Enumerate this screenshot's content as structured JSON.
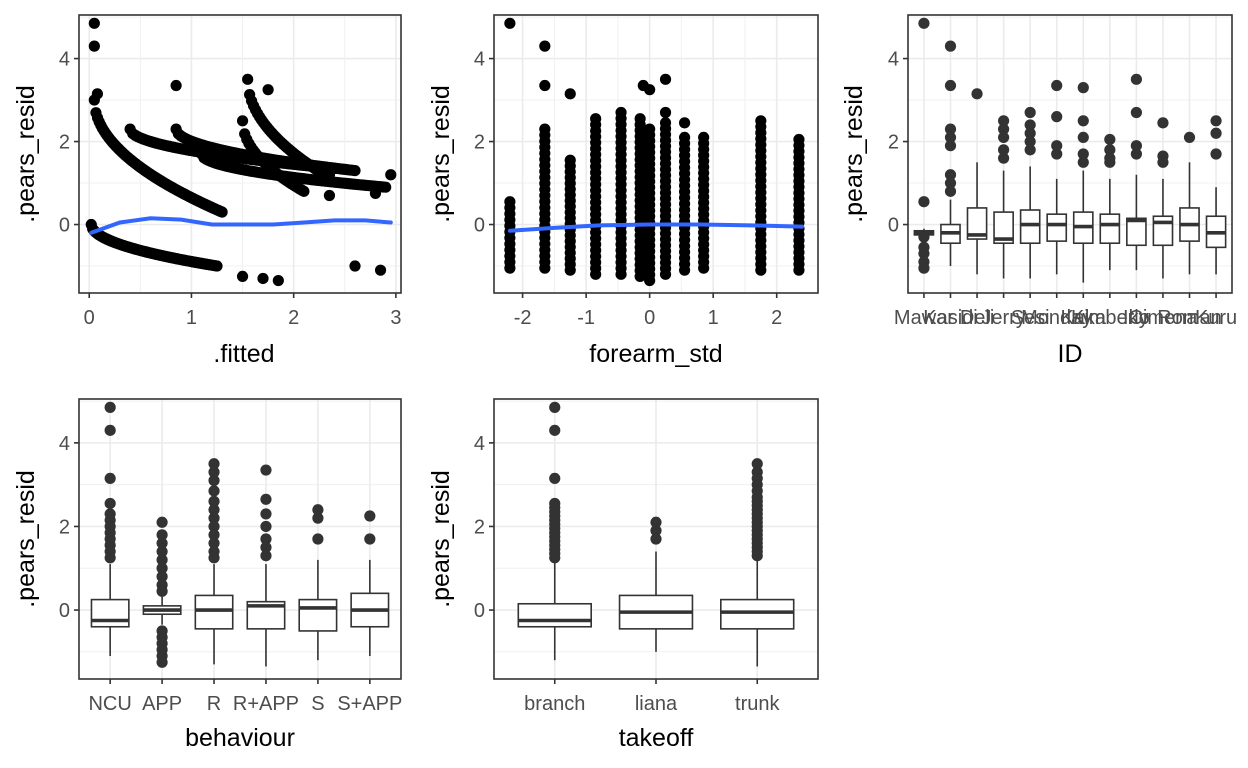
{
  "chart_data": [
    {
      "type": "scatter",
      "xlabel": ".fitted",
      "ylabel": ".pears_resid",
      "xlim": [
        -0.1,
        3.05
      ],
      "ylim": [
        -1.65,
        5.05
      ],
      "xticks": [
        "0",
        "1",
        "2",
        "3"
      ],
      "yticks": [
        "0",
        "2",
        "4"
      ],
      "grid": true,
      "smooth_color": "#3366FF",
      "smooth": [
        [
          0.02,
          -0.2
        ],
        [
          0.3,
          0.05
        ],
        [
          0.6,
          0.15
        ],
        [
          0.9,
          0.12
        ],
        [
          1.2,
          0.0
        ],
        [
          1.5,
          0.0
        ],
        [
          1.8,
          0.0
        ],
        [
          2.1,
          0.05
        ],
        [
          2.4,
          0.1
        ],
        [
          2.7,
          0.1
        ],
        [
          2.95,
          0.05
        ]
      ],
      "curves": [
        {
          "x_from": 0.02,
          "x_to": 1.25,
          "y_at_1": -1.0,
          "y_at_0": 0.0,
          "count": 90
        },
        {
          "x_from": 0.05,
          "x_to": 1.3,
          "y_at_1": 0.3,
          "y_at_0": 3.0,
          "count": 80
        },
        {
          "x_from": 0.4,
          "x_to": 2.4,
          "y_at_1": 1.35,
          "y_at_0": 2.3,
          "count": 80
        },
        {
          "x_from": 0.85,
          "x_to": 2.6,
          "y_at_1": 1.3,
          "y_at_0": 2.3,
          "count": 80
        },
        {
          "x_from": 1.1,
          "x_to": 2.9,
          "y_at_1": 0.9,
          "y_at_0": 1.7,
          "count": 80
        },
        {
          "x_from": 1.55,
          "x_to": 2.3,
          "y_at_1": 1.2,
          "y_at_0": 3.5,
          "count": 40
        },
        {
          "x_from": 1.5,
          "x_to": 2.1,
          "y_at_1": 0.8,
          "y_at_0": 2.5,
          "count": 30
        }
      ],
      "extra_points": [
        [
          0.05,
          4.85
        ],
        [
          0.05,
          4.3
        ],
        [
          0.08,
          3.15
        ],
        [
          0.85,
          3.35
        ],
        [
          2.35,
          1.2
        ],
        [
          2.8,
          0.75
        ],
        [
          2.95,
          1.2
        ],
        [
          2.6,
          -1.0
        ],
        [
          2.85,
          -1.1
        ],
        [
          1.5,
          -1.25
        ],
        [
          1.85,
          -1.35
        ],
        [
          1.7,
          -1.3
        ],
        [
          2.35,
          0.7
        ],
        [
          2.35,
          1.3
        ],
        [
          1.75,
          3.25
        ]
      ]
    },
    {
      "type": "scatter",
      "xlabel": "forearm_std",
      "ylabel": ".pears_resid",
      "xlim": [
        -2.45,
        2.65
      ],
      "ylim": [
        -1.65,
        5.05
      ],
      "xticks": [
        "-2",
        "-1",
        "0",
        "1",
        "2"
      ],
      "yticks": [
        "0",
        "2",
        "4"
      ],
      "grid": true,
      "smooth_color": "#3366FF",
      "smooth": [
        [
          -2.2,
          -0.15
        ],
        [
          -1.5,
          -0.08
        ],
        [
          -0.8,
          -0.02
        ],
        [
          0.0,
          0.0
        ],
        [
          0.8,
          0.0
        ],
        [
          1.6,
          -0.02
        ],
        [
          2.4,
          -0.05
        ]
      ],
      "columns": [
        {
          "x": -2.2,
          "min": -1.05,
          "max": 0.55
        },
        {
          "x": -1.65,
          "min": -1.05,
          "max": 2.3
        },
        {
          "x": -1.25,
          "min": -1.1,
          "max": 1.55
        },
        {
          "x": -0.85,
          "min": -1.2,
          "max": 2.55
        },
        {
          "x": -0.45,
          "min": -1.2,
          "max": 2.7
        },
        {
          "x": -0.15,
          "min": -1.25,
          "max": 2.55
        },
        {
          "x": 0.0,
          "min": -1.35,
          "max": 2.3
        },
        {
          "x": 0.25,
          "min": -1.2,
          "max": 2.45
        },
        {
          "x": 0.55,
          "min": -1.1,
          "max": 2.1
        },
        {
          "x": 0.85,
          "min": -1.05,
          "max": 2.1
        },
        {
          "x": 1.75,
          "min": -1.1,
          "max": 2.5
        },
        {
          "x": 2.35,
          "min": -1.1,
          "max": 2.05
        }
      ],
      "extra_points": [
        [
          -2.2,
          4.85
        ],
        [
          -1.65,
          4.3
        ],
        [
          -1.65,
          3.35
        ],
        [
          -1.25,
          3.15
        ],
        [
          -0.1,
          3.35
        ],
        [
          0.0,
          3.25
        ],
        [
          0.25,
          2.7
        ],
        [
          0.25,
          3.5
        ],
        [
          0.55,
          2.45
        ]
      ]
    },
    {
      "type": "box",
      "xlabel": "ID",
      "ylabel": ".pears_resid",
      "ylim": [
        -1.65,
        5.05
      ],
      "yticks": [
        "0",
        "2",
        "4"
      ],
      "grid": true,
      "categories": [
        "Mawar",
        "Kasidi",
        "Deli",
        "Jerry",
        "Sesi",
        "Monday",
        "Kaka",
        "Kimberly",
        "Iko",
        "Cimena",
        "Roman",
        "Kuru"
      ],
      "tick_text": [
        "Mawar",
        "Kasidi",
        "Deli",
        "Jerry",
        "Sesi",
        "Monday",
        "Kaka",
        "Kimberly",
        "Iko",
        "Cimena",
        "Roman",
        "Kuru"
      ],
      "boxes": [
        {
          "q1": -0.25,
          "median": -0.2,
          "q3": -0.15,
          "lo": -0.3,
          "hi": -0.1,
          "out": [
            4.85,
            0.55,
            -0.55,
            -0.7,
            -0.9,
            -1.05,
            -0.3
          ]
        },
        {
          "q1": -0.45,
          "median": -0.2,
          "q3": 0.0,
          "lo": -1.0,
          "hi": 0.6,
          "out": [
            4.3,
            3.35,
            2.3,
            2.1,
            1.9,
            1.2,
            1.0,
            0.8
          ]
        },
        {
          "q1": -0.35,
          "median": -0.25,
          "q3": 0.4,
          "lo": -1.2,
          "hi": 1.5,
          "out": [
            3.15
          ]
        },
        {
          "q1": -0.45,
          "median": -0.35,
          "q3": 0.3,
          "lo": -1.3,
          "hi": 1.3,
          "out": [
            2.5,
            2.3,
            2.1,
            1.8,
            1.6
          ]
        },
        {
          "q1": -0.45,
          "median": 0.0,
          "q3": 0.35,
          "lo": -1.3,
          "hi": 1.4,
          "out": [
            2.7,
            2.4,
            2.2,
            2.0,
            1.8
          ]
        },
        {
          "q1": -0.4,
          "median": 0.0,
          "q3": 0.25,
          "lo": -1.2,
          "hi": 1.1,
          "out": [
            3.35,
            2.6,
            1.9,
            1.7
          ]
        },
        {
          "q1": -0.45,
          "median": -0.05,
          "q3": 0.3,
          "lo": -1.4,
          "hi": 1.3,
          "out": [
            3.3,
            2.5,
            2.1,
            1.7,
            1.5
          ]
        },
        {
          "q1": -0.45,
          "median": 0.0,
          "q3": 0.25,
          "lo": -1.1,
          "hi": 1.1,
          "out": [
            2.05,
            1.8,
            1.6,
            1.5
          ]
        },
        {
          "q1": -0.5,
          "median": 0.1,
          "q3": 0.15,
          "lo": -1.1,
          "hi": 1.2,
          "out": [
            3.5,
            2.7,
            1.9,
            1.7
          ]
        },
        {
          "q1": -0.5,
          "median": 0.05,
          "q3": 0.2,
          "lo": -1.3,
          "hi": 1.1,
          "out": [
            2.45,
            1.65,
            1.5
          ]
        },
        {
          "q1": -0.4,
          "median": 0.0,
          "q3": 0.4,
          "lo": -1.2,
          "hi": 1.5,
          "out": [
            2.1
          ]
        },
        {
          "q1": -0.55,
          "median": -0.2,
          "q3": 0.2,
          "lo": -1.2,
          "hi": 0.9,
          "out": [
            2.5,
            2.2,
            1.7
          ]
        }
      ]
    },
    {
      "type": "box",
      "xlabel": "behaviour",
      "ylabel": ".pears_resid",
      "ylim": [
        -1.65,
        5.05
      ],
      "yticks": [
        "0",
        "2",
        "4"
      ],
      "grid": true,
      "categories": [
        "NCU",
        "APP",
        "R",
        "R+APP",
        "S",
        "S+APP"
      ],
      "tick_text": [
        "NCU",
        "APP",
        "R",
        "R+APP",
        "S",
        "S+APP"
      ],
      "boxes": [
        {
          "q1": -0.4,
          "median": -0.25,
          "q3": 0.25,
          "lo": -1.1,
          "hi": 1.1,
          "out": [
            4.85,
            4.3,
            3.15,
            2.55,
            2.3,
            2.15,
            2.0,
            1.85,
            1.7,
            1.55,
            1.4,
            1.25
          ]
        },
        {
          "q1": -0.1,
          "median": 0.0,
          "q3": 0.1,
          "lo": -0.35,
          "hi": 0.35,
          "out": [
            2.1,
            1.8,
            1.6,
            1.4,
            1.2,
            1.0,
            0.8,
            0.6,
            0.45,
            -0.5,
            -0.65,
            -0.8,
            -0.95,
            -1.1,
            -1.25
          ]
        },
        {
          "q1": -0.45,
          "median": 0.0,
          "q3": 0.35,
          "lo": -1.3,
          "hi": 1.1,
          "out": [
            3.5,
            3.3,
            3.1,
            2.85,
            2.6,
            2.4,
            2.2,
            2.0,
            1.8,
            1.6,
            1.4,
            1.25
          ]
        },
        {
          "q1": -0.45,
          "median": 0.1,
          "q3": 0.2,
          "lo": -1.35,
          "hi": 1.1,
          "out": [
            3.35,
            2.65,
            2.3,
            2.0,
            1.7,
            1.5,
            1.3
          ]
        },
        {
          "q1": -0.5,
          "median": 0.05,
          "q3": 0.25,
          "lo": -1.2,
          "hi": 1.2,
          "out": [
            2.4,
            2.2,
            1.7
          ]
        },
        {
          "q1": -0.4,
          "median": 0.0,
          "q3": 0.4,
          "lo": -1.1,
          "hi": 1.2,
          "out": [
            2.25,
            1.7
          ]
        }
      ]
    },
    {
      "type": "box",
      "xlabel": "takeoff",
      "ylabel": ".pears_resid",
      "ylim": [
        -1.65,
        5.05
      ],
      "yticks": [
        "0",
        "2",
        "4"
      ],
      "grid": true,
      "categories": [
        "branch",
        "liana",
        "trunk"
      ],
      "tick_text": [
        "branch",
        "liana",
        "trunk"
      ],
      "boxes": [
        {
          "q1": -0.4,
          "median": -0.25,
          "q3": 0.15,
          "lo": -1.2,
          "hi": 1.2,
          "out": [
            4.85,
            4.3,
            3.15,
            2.55,
            2.45,
            2.35,
            2.25,
            2.15,
            2.05,
            1.95,
            1.85,
            1.75,
            1.65,
            1.55,
            1.45,
            1.35,
            1.25
          ]
        },
        {
          "q1": -0.45,
          "median": -0.05,
          "q3": 0.35,
          "lo": -1.0,
          "hi": 1.4,
          "out": [
            2.1,
            1.9,
            1.7
          ]
        },
        {
          "q1": -0.45,
          "median": -0.05,
          "q3": 0.25,
          "lo": -1.35,
          "hi": 1.2,
          "out": [
            3.5,
            3.3,
            3.15,
            3.0,
            2.85,
            2.7,
            2.6,
            2.5,
            2.4,
            2.3,
            2.2,
            2.1,
            2.0,
            1.9,
            1.8,
            1.7,
            1.6,
            1.5,
            1.4,
            1.3
          ]
        }
      ]
    }
  ]
}
